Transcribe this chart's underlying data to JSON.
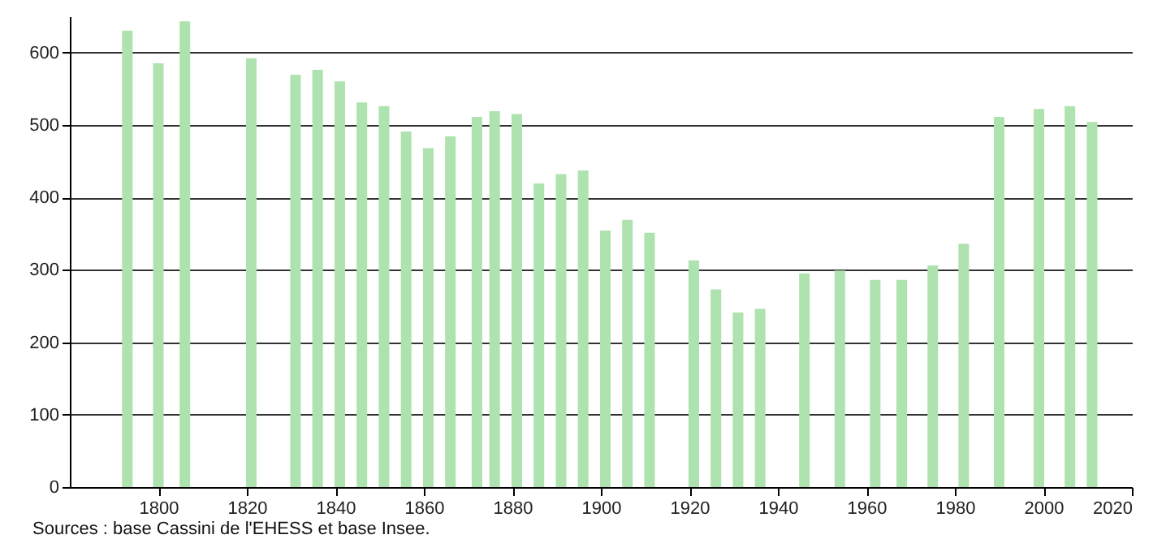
{
  "chart_data": {
    "type": "bar",
    "x": [
      1793,
      1800,
      1806,
      1821,
      1831,
      1836,
      1841,
      1846,
      1851,
      1856,
      1861,
      1866,
      1872,
      1876,
      1881,
      1886,
      1891,
      1896,
      1901,
      1906,
      1911,
      1921,
      1926,
      1931,
      1936,
      1946,
      1954,
      1962,
      1968,
      1975,
      1982,
      1990,
      1999,
      2006,
      2011
    ],
    "values": [
      630,
      585,
      643,
      592,
      569,
      576,
      560,
      531,
      526,
      491,
      468,
      484,
      511,
      519,
      515,
      419,
      432,
      437,
      354,
      369,
      351,
      313,
      273,
      241,
      246,
      295,
      299,
      286,
      286,
      306,
      336,
      511,
      522,
      526,
      504
    ],
    "color": "#aee2ae",
    "xlim": [
      1780,
      2020
    ],
    "xticks": [
      1800,
      1820,
      1840,
      1860,
      1880,
      1900,
      1920,
      1940,
      1960,
      1980,
      2000,
      2020
    ],
    "ylim": [
      0,
      650
    ],
    "yticks": [
      0,
      100,
      200,
      300,
      400,
      500,
      600
    ],
    "grid": "y",
    "annotations": [
      "Sources : base Cassini de l'EHESS et base Insee."
    ]
  }
}
